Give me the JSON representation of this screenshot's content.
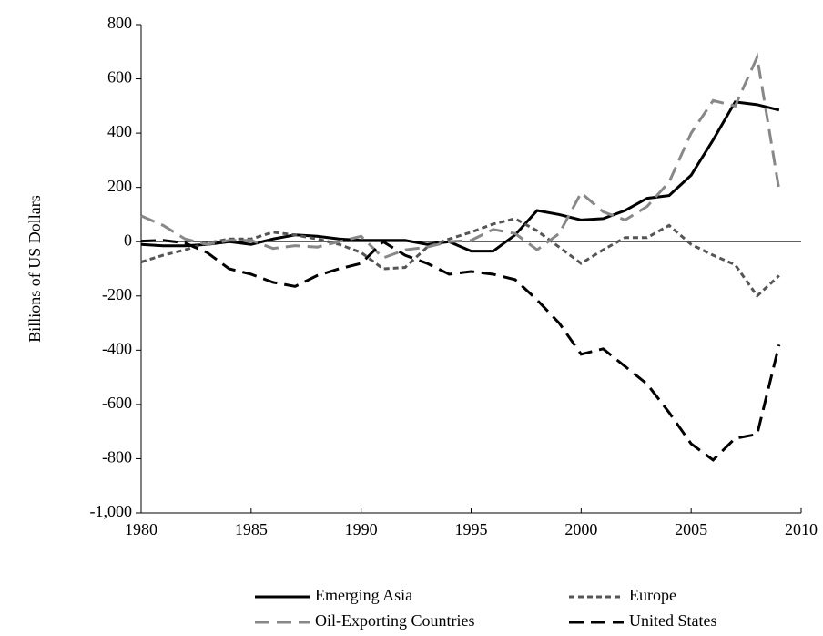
{
  "chart_data": {
    "type": "line",
    "y_label": "Billions of US Dollars",
    "x": [
      1980,
      1981,
      1982,
      1983,
      1984,
      1985,
      1986,
      1987,
      1988,
      1989,
      1990,
      1991,
      1992,
      1993,
      1994,
      1995,
      1996,
      1997,
      1998,
      1999,
      2000,
      2001,
      2002,
      2003,
      2004,
      2005,
      2006,
      2007,
      2008,
      2009
    ],
    "xlim": [
      1980,
      2010
    ],
    "xticks": [
      1980,
      1985,
      1990,
      1995,
      2000,
      2005,
      2010
    ],
    "ylim": [
      -1000,
      800
    ],
    "yticks": [
      {
        "value": -1000,
        "label": "-1,000"
      },
      -800,
      -600,
      -400,
      -200,
      0,
      200,
      400,
      600,
      800
    ],
    "legend": "bottom",
    "series": [
      {
        "name": "Emerging Asia",
        "color": "#000000",
        "dash": "none",
        "values": [
          -10,
          -15,
          -15,
          -10,
          0,
          -10,
          10,
          25,
          20,
          10,
          5,
          5,
          5,
          -10,
          0,
          -35,
          -35,
          25,
          115,
          100,
          80,
          85,
          115,
          160,
          170,
          245,
          375,
          515,
          505,
          485
        ]
      },
      {
        "name": "Europe",
        "color": "#555555",
        "dash": "6,4",
        "values": [
          -75,
          -50,
          -30,
          -5,
          10,
          10,
          35,
          25,
          10,
          -10,
          -40,
          -100,
          -95,
          -20,
          10,
          35,
          65,
          85,
          40,
          -20,
          -80,
          -30,
          15,
          15,
          60,
          -10,
          -50,
          -85,
          -200,
          -125
        ]
      },
      {
        "name": "Oil-Exporting Countries",
        "color": "#888888",
        "dash": "16,8",
        "values": [
          95,
          60,
          10,
          -10,
          5,
          5,
          -25,
          -15,
          -20,
          0,
          20,
          -60,
          -30,
          -20,
          0,
          5,
          45,
          30,
          -30,
          30,
          180,
          110,
          80,
          130,
          220,
          400,
          520,
          500,
          680,
          190
        ]
      },
      {
        "name": "United States",
        "color": "#000000",
        "dash": "16,8",
        "values": [
          2,
          5,
          -5,
          -40,
          -100,
          -120,
          -150,
          -165,
          -125,
          -100,
          -80,
          0,
          -50,
          -80,
          -120,
          -110,
          -120,
          -140,
          -215,
          -300,
          -415,
          -395,
          -460,
          -525,
          -630,
          -745,
          -805,
          -725,
          -710,
          -380
        ]
      }
    ]
  }
}
